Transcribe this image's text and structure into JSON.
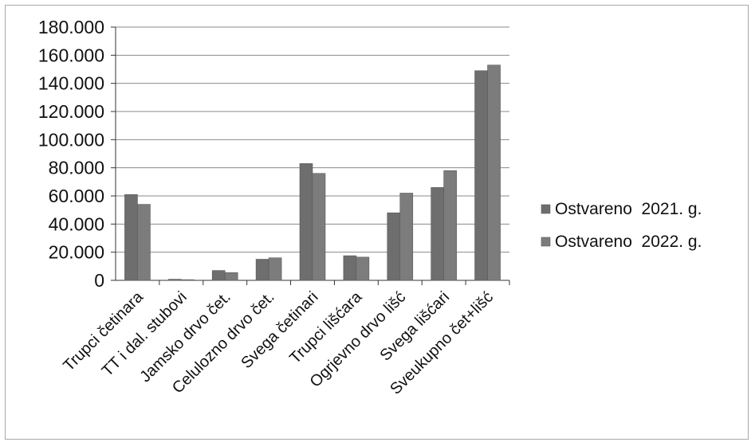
{
  "chart_data": {
    "type": "bar",
    "categories": [
      "Trupci četinara",
      "TT i dal. stubovi",
      "Jamsko drvo čet.",
      "Celulozno drvo čet.",
      "Svega četinari",
      "Trupci lišćara",
      "Ogrjevno drvo lišć",
      "Svega lišćari",
      "Sveukupno čet+lišć"
    ],
    "series": [
      {
        "name": "Ostvareno  2021. g.",
        "values": [
          61000,
          800,
          7000,
          15000,
          83000,
          17500,
          48000,
          66000,
          149000
        ],
        "color": "#6e6e6e"
      },
      {
        "name": "Ostvareno  2022. g.",
        "values": [
          54000,
          500,
          5500,
          16000,
          76000,
          16500,
          62000,
          78000,
          153000
        ],
        "color": "#7c7c7c"
      }
    ],
    "ylim": [
      0,
      180000
    ],
    "yticks": [
      0,
      20000,
      40000,
      60000,
      80000,
      100000,
      120000,
      140000,
      160000,
      180000
    ],
    "ytick_labels": [
      "0",
      "20.000",
      "40.000",
      "60.000",
      "80.000",
      "100.000",
      "120.000",
      "140.000",
      "160.000",
      "180.000"
    ],
    "grid": true,
    "legend_position": "right",
    "title": "",
    "xlabel": "",
    "ylabel": ""
  }
}
